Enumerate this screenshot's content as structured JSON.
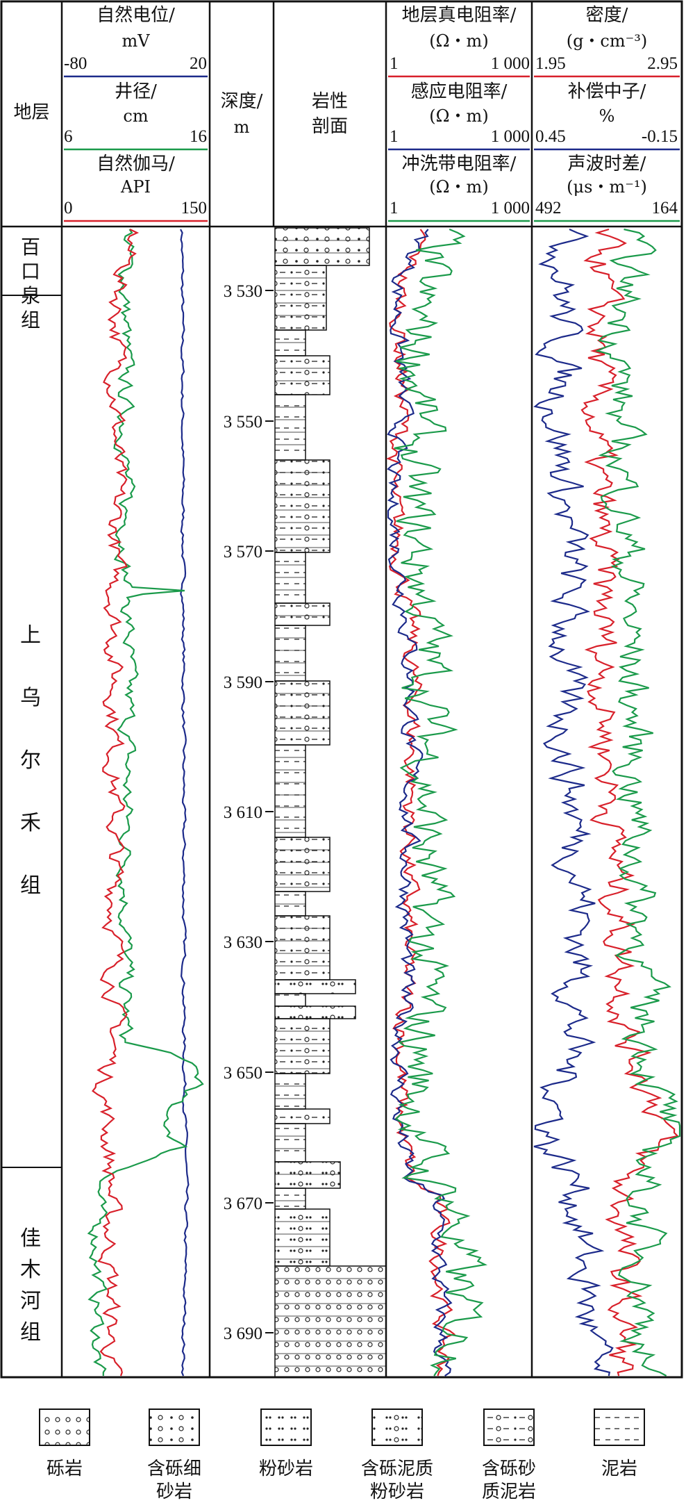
{
  "header": {
    "strata": "地层",
    "sp": {
      "title": "自然电位/",
      "unit": "mV",
      "min": "-80",
      "max": "20",
      "color": "#1c2a8a"
    },
    "cal": {
      "title": "井径/",
      "unit": "cm",
      "min": "6",
      "max": "16",
      "color": "#1a9a4a"
    },
    "gr": {
      "title": "自然伽马/",
      "unit": "API",
      "min": "0",
      "max": "150",
      "color": "#d8202a"
    },
    "depth": {
      "title": "深度/",
      "unit": "m"
    },
    "lith": {
      "title": "岩性",
      "title2": "剖面"
    },
    "rt": {
      "title": "地层真电阻率/",
      "unit": "(Ω・m)",
      "min": "1",
      "max": "1 000",
      "color": "#d8202a"
    },
    "ri": {
      "title": "感应电阻率/",
      "unit": "(Ω・m)",
      "min": "1",
      "max": "1 000",
      "color": "#1c2a8a"
    },
    "rxo": {
      "title": "冲洗带电阻率/",
      "unit": "(Ω・m)",
      "min": "1",
      "max": "1 000",
      "color": "#1a9a4a"
    },
    "den": {
      "title": "密度/",
      "unit": "(g・cm⁻³)",
      "min": "1.95",
      "max": "2.95",
      "color": "#d8202a"
    },
    "cnl": {
      "title": "补偿中子/",
      "unit": "%",
      "min": "0.45",
      "max": "-0.15",
      "color": "#1c2a8a"
    },
    "ac": {
      "title": "声波时差/",
      "unit": "(μs・m⁻¹)",
      "min": "492",
      "max": "164",
      "color": "#1a9a4a"
    }
  },
  "zones": [
    {
      "name": "百口泉组"
    },
    {
      "name": "上乌尔禾组"
    },
    {
      "name": "佳木河组"
    }
  ],
  "depth_ticks": [
    "3 530",
    "3 550",
    "3 570",
    "3 590",
    "3 610",
    "3 630",
    "3 650",
    "3 670",
    "3 690"
  ],
  "legend": [
    {
      "name": "砾岩",
      "icon": "conglomerate-pattern"
    },
    {
      "name": "含砾细砂岩",
      "icon": "pebbly-fine-sandstone-pattern"
    },
    {
      "name": "粉砂岩",
      "icon": "siltstone-pattern"
    },
    {
      "name": "含砾泥质粉砂岩",
      "icon": "pebbly-argillaceous-siltstone-pattern"
    },
    {
      "name": "含砾砂质泥岩",
      "icon": "pebbly-sandy-mudstone-pattern"
    },
    {
      "name": "泥岩",
      "icon": "mudstone-pattern"
    }
  ]
}
